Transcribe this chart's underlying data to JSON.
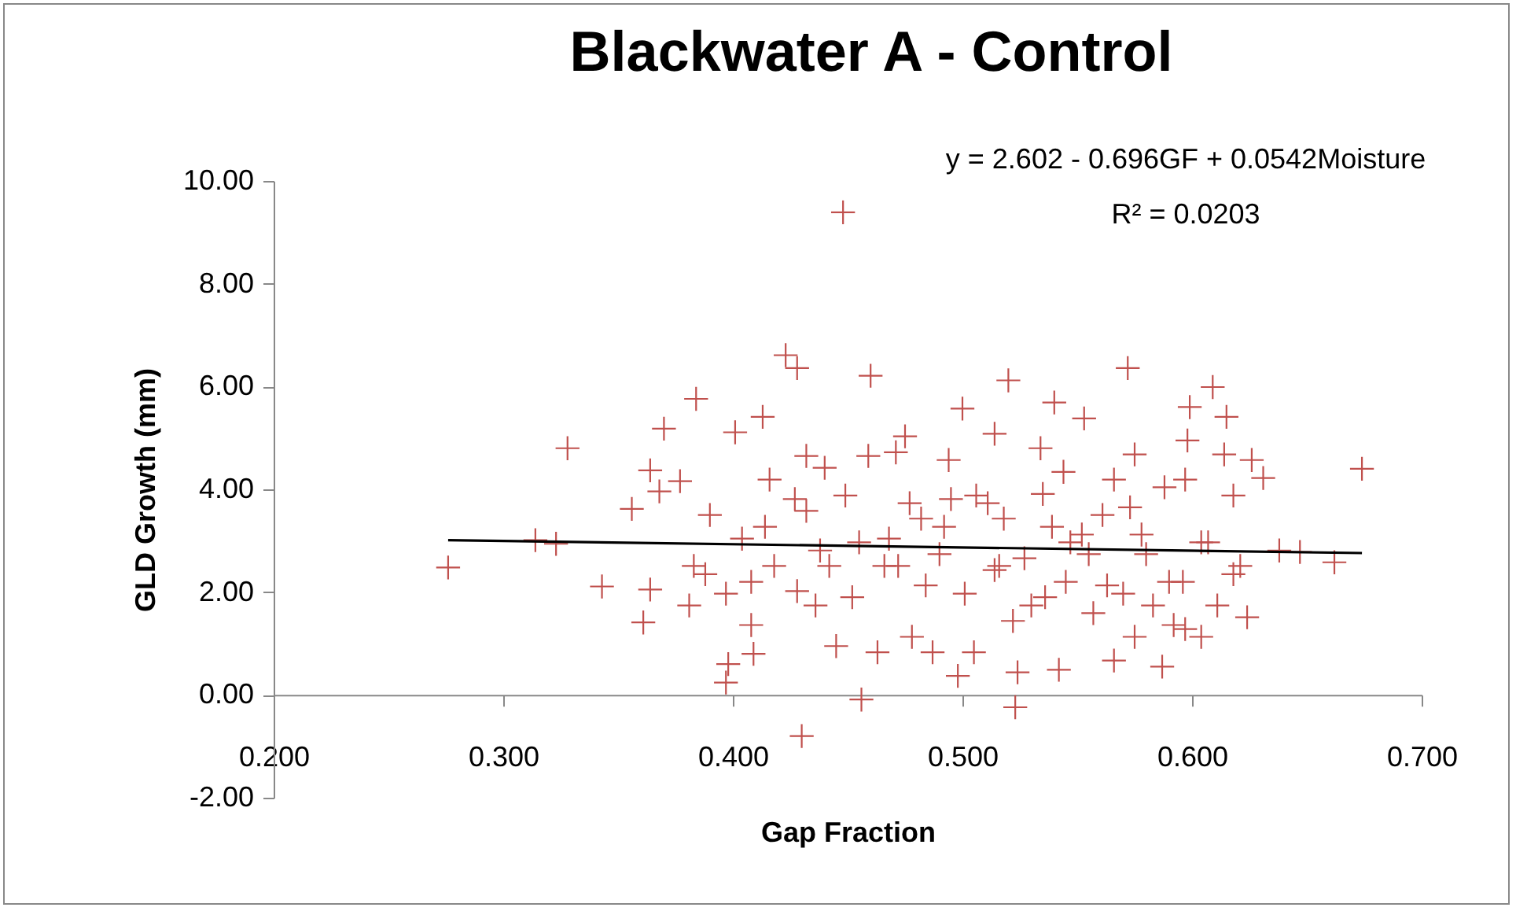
{
  "chart_data": {
    "type": "scatter",
    "title": "Blackwater A - Control",
    "xlabel": "Gap Fraction",
    "ylabel": "GLD Growth (mm)",
    "annotations": [
      "y = 2.602 - 0.696GF + 0.0542Moisture",
      "R² = 0.0203"
    ],
    "xlim": [
      0.2,
      0.7
    ],
    "ylim": [
      -2,
      10
    ],
    "xticks": [
      {
        "value": 0.2,
        "label": "0.200"
      },
      {
        "value": 0.3,
        "label": "0.300"
      },
      {
        "value": 0.4,
        "label": "0.400"
      },
      {
        "value": 0.5,
        "label": "0.500"
      },
      {
        "value": 0.6,
        "label": "0.600"
      },
      {
        "value": 0.7,
        "label": "0.700"
      }
    ],
    "yticks": [
      {
        "value": -2,
        "label": "-2.00"
      },
      {
        "value": 0,
        "label": "0.00"
      },
      {
        "value": 2,
        "label": "2.00"
      },
      {
        "value": 4,
        "label": "4.00"
      },
      {
        "value": 6,
        "label": "6.00"
      },
      {
        "value": 8,
        "label": "8.00"
      },
      {
        "value": 10,
        "label": "10.00"
      }
    ],
    "grid": false,
    "series": [
      {
        "color": "#c0504d",
        "marker": "cross",
        "x": [
          0.448,
          0.276,
          0.314,
          0.323,
          0.328,
          0.343,
          0.356,
          0.361,
          0.364,
          0.37,
          0.364,
          0.368,
          0.377,
          0.384,
          0.381,
          0.39,
          0.397,
          0.398,
          0.401,
          0.408,
          0.409,
          0.413,
          0.416,
          0.404,
          0.397,
          0.418,
          0.423,
          0.428,
          0.43,
          0.427,
          0.432,
          0.428,
          0.436,
          0.44,
          0.445,
          0.442,
          0.449,
          0.452,
          0.456,
          0.46,
          0.463,
          0.459,
          0.466,
          0.468,
          0.471,
          0.475,
          0.477,
          0.482,
          0.478,
          0.487,
          0.49,
          0.494,
          0.495,
          0.498,
          0.5,
          0.501,
          0.505,
          0.506,
          0.511,
          0.514,
          0.516,
          0.518,
          0.52,
          0.522,
          0.523,
          0.524,
          0.527,
          0.53,
          0.534,
          0.535,
          0.54,
          0.539,
          0.542,
          0.544,
          0.547,
          0.552,
          0.553,
          0.557,
          0.561,
          0.563,
          0.566,
          0.566,
          0.57,
          0.572,
          0.573,
          0.575,
          0.575,
          0.58,
          0.583,
          0.587,
          0.588,
          0.592,
          0.596,
          0.598,
          0.599,
          0.597,
          0.604,
          0.604,
          0.609,
          0.611,
          0.614,
          0.615,
          0.618,
          0.621,
          0.624,
          0.626,
          0.631,
          0.638,
          0.647,
          0.662,
          0.674,
          0.383,
          0.388,
          0.408,
          0.438,
          0.455,
          0.472,
          0.484,
          0.514,
          0.536,
          0.545,
          0.555,
          0.578,
          0.607,
          0.618,
          0.492,
          0.414,
          0.432,
          0.59,
          0.597
        ],
        "values": [
          9.39,
          2.48,
          3.01,
          2.94,
          4.8,
          2.11,
          3.62,
          1.41,
          2.05,
          5.18,
          4.37,
          3.96,
          4.16,
          5.76,
          1.74,
          3.5,
          0.24,
          0.6,
          5.11,
          1.36,
          0.8,
          5.41,
          4.19,
          3.04,
          1.97,
          2.51,
          6.61,
          6.36,
          -0.8,
          3.81,
          4.65,
          2.02,
          1.74,
          4.42,
          0.95,
          2.51,
          3.88,
          1.9,
          -0.09,
          6.21,
          0.83,
          4.65,
          2.51,
          3.04,
          4.72,
          5.03,
          3.73,
          3.43,
          1.13,
          0.83,
          2.74,
          4.57,
          3.81,
          0.37,
          5.57,
          1.97,
          0.83,
          3.88,
          3.73,
          5.08,
          2.51,
          3.43,
          6.12,
          1.44,
          -0.24,
          0.44,
          2.66,
          1.74,
          4.8,
          3.91,
          5.69,
          3.27,
          0.49,
          4.34,
          2.97,
          3.12,
          5.38,
          1.59,
          3.5,
          2.13,
          0.67,
          4.19,
          1.97,
          6.36,
          3.65,
          4.68,
          1.13,
          2.74,
          1.74,
          0.55,
          4.04,
          1.36,
          2.2,
          4.95,
          5.6,
          4.19,
          2.97,
          1.13,
          5.99,
          1.74,
          4.68,
          5.41,
          3.88,
          2.51,
          1.51,
          4.57,
          4.22,
          2.81,
          2.78,
          2.58,
          4.4,
          2.51,
          2.35,
          2.2,
          2.81,
          2.97,
          2.51,
          2.13,
          2.43,
          1.9,
          2.2,
          2.74,
          3.12,
          2.97,
          2.35,
          3.27,
          3.27,
          3.58,
          2.2,
          1.28
        ]
      },
      {
        "type": "line",
        "color": "#000000",
        "line_style": "solid",
        "x": [
          0.276,
          0.674
        ],
        "values": [
          3.01,
          2.76
        ]
      }
    ]
  }
}
